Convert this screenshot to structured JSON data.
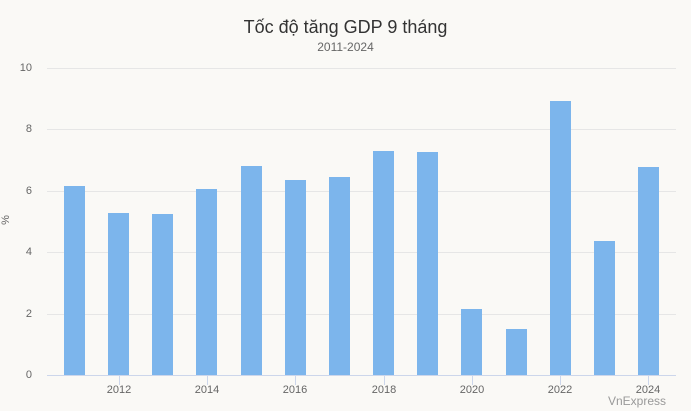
{
  "chart_data": {
    "type": "bar",
    "title": "Tốc độ tăng GDP 9 tháng",
    "subtitle": "2011-2024",
    "xlabel": "",
    "ylabel": "%",
    "ylim": [
      0,
      10
    ],
    "yticks": [
      "0",
      "2",
      "4",
      "6",
      "8",
      "10"
    ],
    "xticks": [
      "2012",
      "2014",
      "2016",
      "2018",
      "2020",
      "2022",
      "2024"
    ],
    "categories": [
      "2011",
      "2012",
      "2013",
      "2014",
      "2015",
      "2016",
      "2017",
      "2018",
      "2019",
      "2020",
      "2021",
      "2022",
      "2023",
      "2024"
    ],
    "values": [
      6.17,
      5.29,
      5.23,
      6.07,
      6.82,
      6.36,
      6.46,
      7.31,
      7.25,
      2.15,
      1.5,
      8.93,
      4.36,
      6.79
    ],
    "grid": true,
    "legend": false,
    "bar_color": "#7cb5ec",
    "credit": "VnExpress"
  }
}
